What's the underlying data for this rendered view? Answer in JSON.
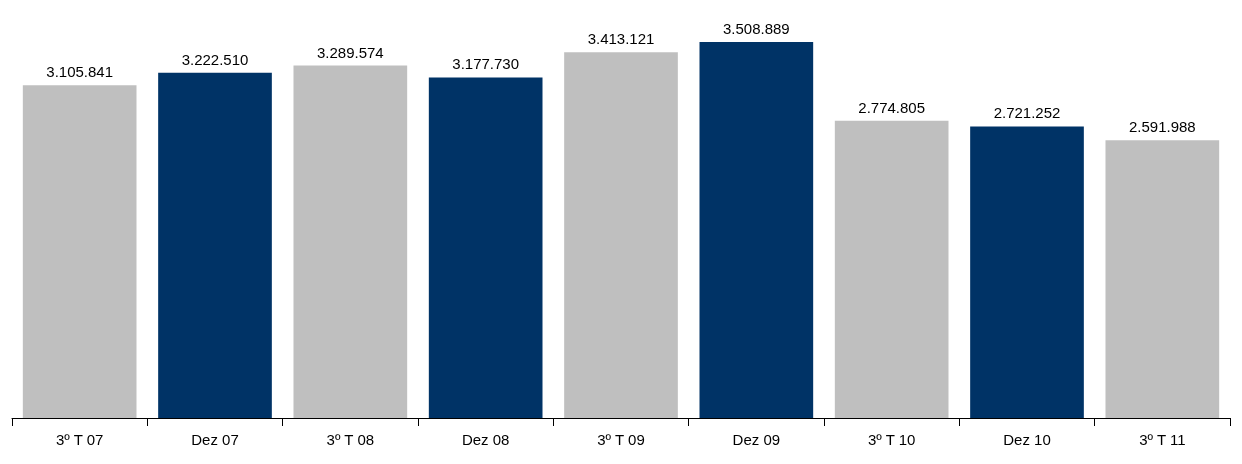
{
  "chart_data": {
    "type": "bar",
    "categories": [
      "3º T 07",
      "Dez 07",
      "3º T 08",
      "Dez 08",
      "3º T 09",
      "Dez 09",
      "3º T 10",
      "Dez 10",
      "3º T 11"
    ],
    "values": [
      3105841,
      3222510,
      3289574,
      3177730,
      3413121,
      3508889,
      2774805,
      2721252,
      2591988
    ],
    "colors": [
      "#bfbfbf",
      "#003366",
      "#bfbfbf",
      "#003366",
      "#bfbfbf",
      "#003366",
      "#bfbfbf",
      "#003366",
      "#bfbfbf"
    ],
    "value_labels": [
      "3.105.841",
      "3.222.510",
      "3.289.574",
      "3.177.730",
      "3.413.121",
      "3.508.889",
      "2.774.805",
      "2.721.252",
      "2.591.988"
    ]
  }
}
